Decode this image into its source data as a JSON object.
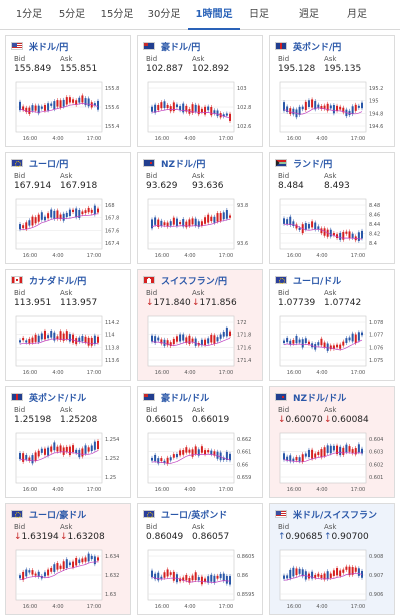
{
  "tabs": [
    {
      "label": "1分足",
      "active": false
    },
    {
      "label": "5分足",
      "active": false
    },
    {
      "label": "15分足",
      "active": false
    },
    {
      "label": "30分足",
      "active": false
    },
    {
      "label": "1時間足",
      "active": true
    },
    {
      "label": "日足",
      "active": false
    },
    {
      "label": "週足",
      "active": false
    },
    {
      "label": "月足",
      "active": false
    }
  ],
  "labels": {
    "bid": "Bid",
    "ask": "Ask"
  },
  "colors": {
    "up": "#d62020",
    "down": "#2a57a8",
    "ma": "#c040c0",
    "accent": "#2a62b8"
  },
  "cards": [
    {
      "flag": "us",
      "pair": "米ドル/円",
      "bid": "155.849",
      "ask": "155.851",
      "bg": "white",
      "ticks": [
        "155.8",
        "155.6",
        "155.4"
      ],
      "top_tick": "155.8",
      "times": [
        "16:00",
        "4:00",
        "17:00"
      ]
    },
    {
      "flag": "au",
      "pair": "豪ドル/円",
      "bid": "102.887",
      "ask": "102.892",
      "bg": "white",
      "ticks": [
        "103",
        "102.8",
        "102.6"
      ],
      "top_tick": "103",
      "times": [
        "16:00",
        "4:00",
        "17:00"
      ]
    },
    {
      "flag": "gb",
      "pair": "英ポンド/円",
      "bid": "195.128",
      "ask": "195.135",
      "bg": "white",
      "ticks": [
        "195.2",
        "195",
        "194.8",
        "194.6"
      ],
      "top_tick": "195.2",
      "times": [
        "16:00",
        "4:00",
        "17:00"
      ]
    },
    {
      "flag": "eu",
      "pair": "ユーロ/円",
      "bid": "167.914",
      "ask": "167.918",
      "bg": "white",
      "ticks": [
        "168",
        "167.8",
        "167.6",
        "167.4"
      ],
      "top_tick": "168",
      "times": [
        "16:00",
        "4:00",
        "17:00"
      ]
    },
    {
      "flag": "nz",
      "pair": "NZドル/円",
      "bid": "93.629",
      "ask": "93.636",
      "bg": "white",
      "ticks": [
        "93.8",
        "93.6"
      ],
      "top_tick": "93.8",
      "times": [
        "16:00",
        "4:00",
        "17:00"
      ]
    },
    {
      "flag": "za",
      "pair": "ランド/円",
      "bid": "8.484",
      "ask": "8.493",
      "bg": "white",
      "ticks": [
        "8.48",
        "8.46",
        "8.44",
        "8.42",
        "8.4"
      ],
      "top_tick": "8.48",
      "times": [
        "16:00",
        "4:00",
        "17:00"
      ]
    },
    {
      "flag": "ca",
      "pair": "カナダドル/円",
      "bid": "113.951",
      "ask": "113.957",
      "bg": "white",
      "ticks": [
        "114.2",
        "114",
        "113.8",
        "113.6"
      ],
      "top_tick": "114.2",
      "times": [
        "16:00",
        "4:00",
        "17:00"
      ]
    },
    {
      "flag": "ch",
      "pair": "スイスフラン/円",
      "bid": "171.840",
      "ask": "171.856",
      "bg": "pink",
      "dir": "down",
      "ticks": [
        "172",
        "171.8",
        "171.6",
        "171.4"
      ],
      "top_tick": "172",
      "times": [
        "16:00",
        "4:00",
        "17:00"
      ]
    },
    {
      "flag": "eu",
      "pair": "ユーロ/ドル",
      "bid": "1.07739",
      "ask": "1.07742",
      "bg": "white",
      "ticks": [
        "1.078",
        "1.077",
        "1.076",
        "1.075"
      ],
      "top_tick": "1.078",
      "times": [
        "16:00",
        "4:00",
        "17:00"
      ]
    },
    {
      "flag": "gb",
      "pair": "英ポンド/ドル",
      "bid": "1.25198",
      "ask": "1.25208",
      "bg": "white",
      "ticks": [
        "1.254",
        "1.252",
        "1.25"
      ],
      "top_tick": "1.254",
      "times": [
        "16:00",
        "4:00",
        "17:00"
      ]
    },
    {
      "flag": "au",
      "pair": "豪ドル/ドル",
      "bid": "0.66015",
      "ask": "0.66019",
      "bg": "white",
      "ticks": [
        "0.662",
        "0.661",
        "0.66",
        "0.659"
      ],
      "top_tick": "0.662",
      "times": [
        "16:00",
        "4:00",
        "17:00"
      ]
    },
    {
      "flag": "nz",
      "pair": "NZドル/ドル",
      "bid": "0.60070",
      "ask": "0.60084",
      "bg": "pink",
      "dir": "down",
      "ticks": [
        "0.604",
        "0.603",
        "0.602",
        "0.601"
      ],
      "top_tick": "0.604",
      "times": [
        "16:00",
        "4:00",
        "17:00"
      ]
    },
    {
      "flag": "eu",
      "pair": "ユーロ/豪ドル",
      "bid": "1.63194",
      "ask": "1.63208",
      "bg": "pink",
      "dir": "down",
      "ticks": [
        "1.634",
        "1.632",
        "1.63"
      ],
      "top_tick": "1.634",
      "times": [
        "16:00",
        "4:00",
        "17:00"
      ]
    },
    {
      "flag": "eu",
      "pair": "ユーロ/英ポンド",
      "bid": "0.86049",
      "ask": "0.86057",
      "bg": "white",
      "ticks": [
        "0.8605",
        "0.86",
        "0.8595"
      ],
      "top_tick": "0.8605",
      "times": [
        "16:00",
        "4:00",
        "17:00"
      ]
    },
    {
      "flag": "us",
      "pair": "米ドル/スイスフラン",
      "bid": "0.90685",
      "ask": "0.90700",
      "bg": "blue",
      "dir": "up",
      "ticks": [
        "0.908",
        "0.907",
        "0.906"
      ],
      "top_tick": "0.908",
      "times": [
        "16:00",
        "4:00",
        "17:00"
      ]
    }
  ]
}
